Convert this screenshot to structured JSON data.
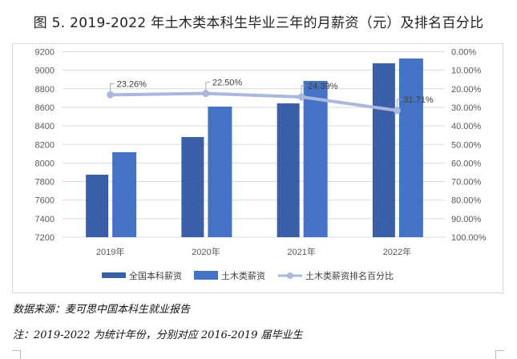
{
  "title": "图 5. 2019-2022 年土木类本科生毕业三年的月薪资（元）及排名百分比",
  "footer": {
    "source": "数据来源：麦可思中国本科生就业报告",
    "note": "注：2019-2022 为统计年份，分别对应 2016-2019 届毕业生"
  },
  "colors": {
    "national": "#3a5ea8",
    "civil": "#4472c4",
    "rank_line": "#aab8de",
    "grid": "#d9d9d9"
  },
  "chart_data": {
    "type": "bar",
    "title": "图 5. 2019-2022 年土木类本科生毕业三年的月薪资（元）及排名百分比",
    "categories": [
      "2019年",
      "2020年",
      "2021年",
      "2022年"
    ],
    "series": [
      {
        "name": "全国本科薪资",
        "type": "bar",
        "axis": "left",
        "values": [
          7874,
          8280,
          8643,
          9075
        ]
      },
      {
        "name": "土木类薪资",
        "type": "bar",
        "axis": "left",
        "values": [
          8116,
          8608,
          8885,
          9127
        ]
      },
      {
        "name": "土木类薪资排名百分比",
        "type": "line",
        "axis": "right",
        "values": [
          23.26,
          22.5,
          24.39,
          31.71
        ],
        "labels": [
          "23.26%",
          "22.50%",
          "24.39%",
          "31.71%"
        ]
      }
    ],
    "left_axis": {
      "min": 7200,
      "max": 9200,
      "step": 200,
      "ticks": [
        "9200",
        "9000",
        "8800",
        "8600",
        "8400",
        "8200",
        "8000",
        "7800",
        "7600",
        "7400",
        "7200"
      ]
    },
    "right_axis": {
      "min": 0,
      "max": 100,
      "reversed": true,
      "ticks": [
        "0.00%",
        "10.00%",
        "20.00%",
        "30.00%",
        "40.00%",
        "50.00%",
        "60.00%",
        "70.00%",
        "80.00%",
        "90.00%",
        "100.00%"
      ]
    },
    "xlabel": "",
    "ylabel": "",
    "grid": true,
    "legend_position": "bottom",
    "legend": [
      "全国本科薪资",
      "土木类薪资",
      "土木类薪资排名百分比"
    ]
  }
}
